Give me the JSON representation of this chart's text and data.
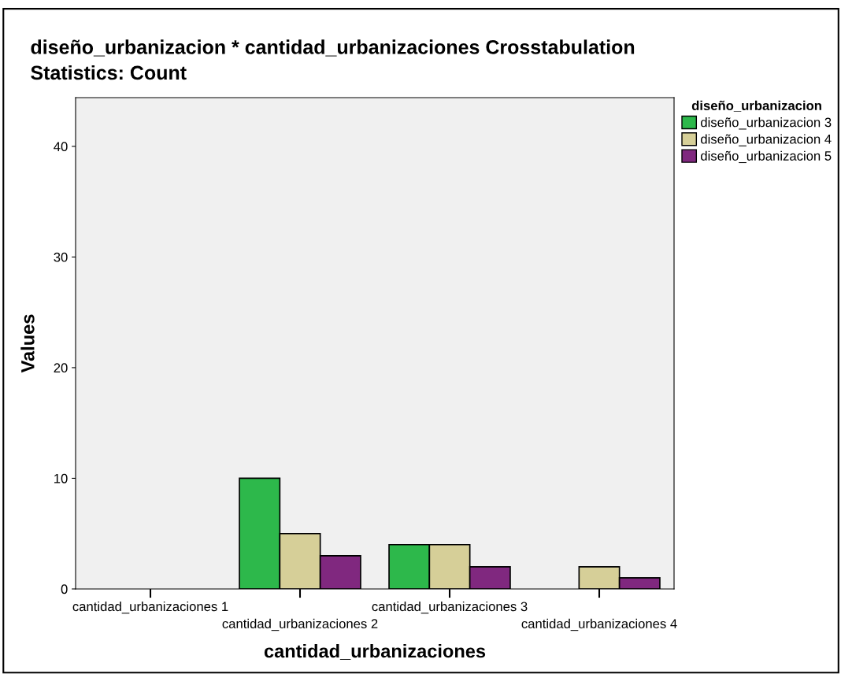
{
  "chart_data": {
    "type": "bar",
    "title": "diseño_urbanizacion * cantidad_urbanizaciones Crosstabulation",
    "subtitle": "Statistics: Count",
    "xlabel": "cantidad_urbanizaciones",
    "ylabel": "Values",
    "legend_title": "diseño_urbanizacion",
    "categories": [
      "cantidad_urbanizaciones 1",
      "cantidad_urbanizaciones 2",
      "cantidad_urbanizaciones 3",
      "cantidad_urbanizaciones 4"
    ],
    "series": [
      {
        "name": "diseño_urbanizacion 3",
        "color": "#2db84b",
        "values": [
          null,
          10,
          4,
          null
        ]
      },
      {
        "name": "diseño_urbanizacion 4",
        "color": "#d6cf98",
        "values": [
          null,
          5,
          4,
          2
        ]
      },
      {
        "name": "diseño_urbanizacion 5",
        "color": "#80287f",
        "values": [
          null,
          3,
          2,
          1
        ]
      }
    ],
    "ylim": [
      0,
      44.4
    ],
    "yticks": [
      0,
      10,
      20,
      30,
      40
    ],
    "grid": false,
    "legend": "right"
  }
}
